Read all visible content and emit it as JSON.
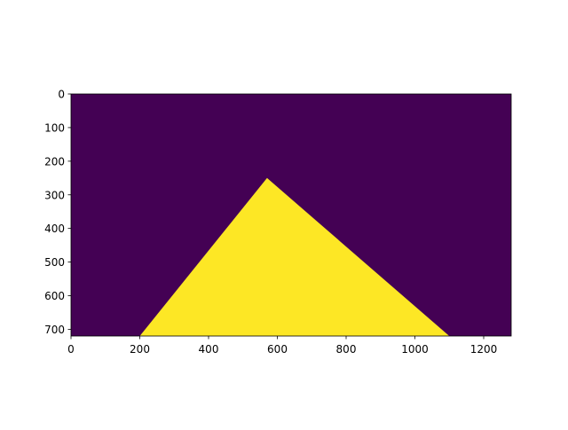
{
  "chart_data": {
    "type": "heatmap",
    "title": "",
    "xlabel": "",
    "ylabel": "",
    "xlim": [
      0,
      1280
    ],
    "ylim": [
      720,
      0
    ],
    "x_ticks": [
      0,
      200,
      400,
      600,
      800,
      1000,
      1200
    ],
    "y_ticks": [
      0,
      100,
      200,
      300,
      400,
      500,
      600,
      700
    ],
    "background_value_color": "#440154",
    "region_value_color": "#fde725",
    "region_polygon": [
      [
        200,
        720
      ],
      [
        570,
        250
      ],
      [
        1100,
        720
      ]
    ],
    "colormap": "viridis",
    "grid": false
  }
}
